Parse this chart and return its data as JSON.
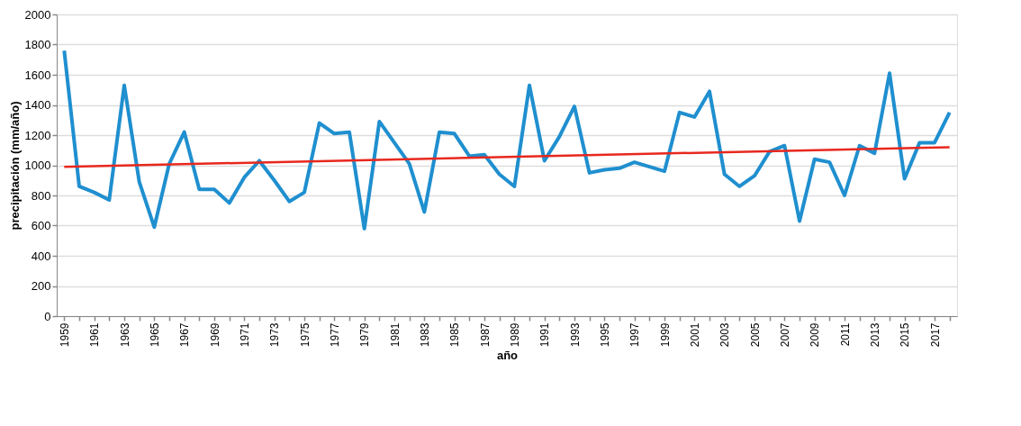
{
  "chart_data": {
    "type": "line",
    "xlabel": "año",
    "ylabel": "precipitación (mm/año)",
    "x": [
      1959,
      1960,
      1961,
      1962,
      1963,
      1964,
      1965,
      1966,
      1967,
      1968,
      1969,
      1970,
      1971,
      1972,
      1973,
      1974,
      1975,
      1976,
      1977,
      1978,
      1979,
      1980,
      1981,
      1982,
      1983,
      1984,
      1985,
      1986,
      1987,
      1988,
      1989,
      1990,
      1991,
      1992,
      1993,
      1994,
      1995,
      1996,
      1997,
      1998,
      1999,
      2000,
      2001,
      2002,
      2003,
      2004,
      2005,
      2006,
      2007,
      2008,
      2009,
      2010,
      2011,
      2012,
      2013,
      2014,
      2015,
      2016,
      2017,
      2018
    ],
    "series": [
      {
        "color": "#1f8fcf",
        "values": [
          1760,
          860,
          820,
          770,
          1530,
          890,
          590,
          1010,
          1220,
          840,
          840,
          750,
          920,
          1030,
          900,
          760,
          820,
          1280,
          1210,
          1220,
          580,
          1290,
          1150,
          1010,
          690,
          1220,
          1210,
          1060,
          1070,
          940,
          860,
          1530,
          1030,
          1190,
          1390,
          950,
          970,
          980,
          1020,
          990,
          960,
          1350,
          1320,
          1490,
          940,
          860,
          930,
          1090,
          1130,
          630,
          1040,
          1020,
          800,
          1130,
          1080,
          1610,
          910,
          1150,
          1150,
          1350
        ]
      },
      {
        "type": "line",
        "color": "#e8281e",
        "x": [
          1959,
          2018
        ],
        "values": [
          990,
          1120
        ]
      }
    ],
    "xlim": [
      1958.5,
      2018.5
    ],
    "xticks": [
      1959,
      {
        "value": 1960,
        "label": null
      },
      1961,
      {
        "value": 1962,
        "label": null
      },
      1963,
      {
        "value": 1964,
        "label": null
      },
      1965,
      {
        "value": 1966,
        "label": null
      },
      1967,
      {
        "value": 1968,
        "label": null
      },
      1969,
      {
        "value": 1970,
        "label": null
      },
      1971,
      {
        "value": 1972,
        "label": null
      },
      1973,
      {
        "value": 1974,
        "label": null
      },
      1975,
      {
        "value": 1976,
        "label": null
      },
      1977,
      {
        "value": 1978,
        "label": null
      },
      1979,
      {
        "value": 1980,
        "label": null
      },
      1981,
      {
        "value": 1982,
        "label": null
      },
      1983,
      {
        "value": 1984,
        "label": null
      },
      1985,
      {
        "value": 1986,
        "label": null
      },
      1987,
      {
        "value": 1988,
        "label": null
      },
      1989,
      {
        "value": 1990,
        "label": null
      },
      1991,
      {
        "value": 1992,
        "label": null
      },
      1993,
      {
        "value": 1994,
        "label": null
      },
      1995,
      {
        "value": 1996,
        "label": null
      },
      1997,
      {
        "value": 1998,
        "label": null
      },
      1999,
      {
        "value": 2000,
        "label": null
      },
      2001,
      {
        "value": 2002,
        "label": null
      },
      2003,
      {
        "value": 2004,
        "label": null
      },
      2005,
      {
        "value": 2006,
        "label": null
      },
      2007,
      {
        "value": 2008,
        "label": null
      },
      2009,
      {
        "value": 2010,
        "label": null
      },
      2011,
      {
        "value": 2012,
        "label": null
      },
      2013,
      {
        "value": 2014,
        "label": null
      },
      2015,
      {
        "value": 2016,
        "label": null
      },
      2017,
      {
        "value": 2018,
        "label": null
      }
    ],
    "ylim": [
      0,
      2000
    ],
    "yticks": [
      0,
      200,
      400,
      600,
      800,
      1000,
      1200,
      1400,
      1600,
      1800,
      2000
    ],
    "grid": "y",
    "marker": "none",
    "line_style": "solid"
  }
}
